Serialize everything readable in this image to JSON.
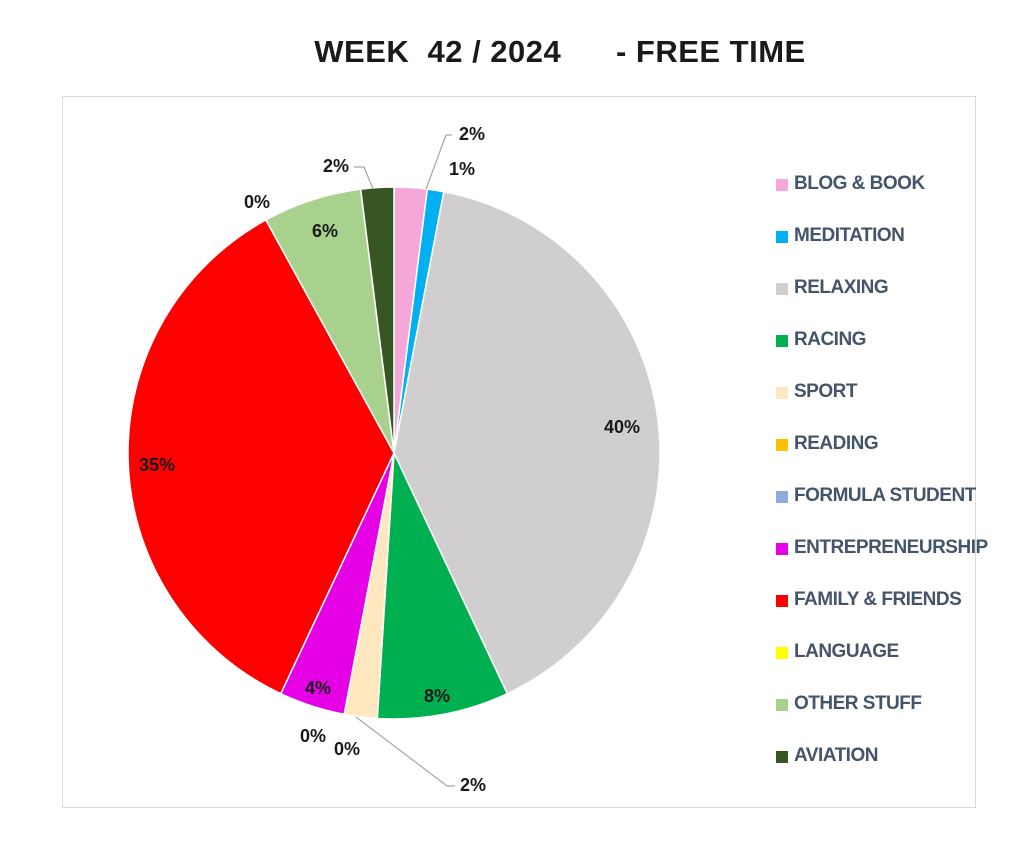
{
  "chart_data": {
    "type": "pie",
    "title": "WEEK  42 / 2024      - FREE TIME",
    "legend_position": "right",
    "slices": [
      {
        "label": "BLOG & BOOK",
        "value": 2,
        "display": "2%",
        "color": "#f4a7d8"
      },
      {
        "label": "MEDITATION",
        "value": 1,
        "display": "1%",
        "color": "#00b0f0"
      },
      {
        "label": "RELAXING",
        "value": 40,
        "display": "40%",
        "color": "#d0cece"
      },
      {
        "label": "RACING",
        "value": 8,
        "display": "8%",
        "color": "#00b050"
      },
      {
        "label": "SPORT",
        "value": 2,
        "display": "2%",
        "color": "#ffe8c0"
      },
      {
        "label": "READING",
        "value": 0,
        "display": "0%",
        "color": "#ffc000"
      },
      {
        "label": "FORMULA STUDENT",
        "value": 0,
        "display": "0%",
        "color": "#8faadc"
      },
      {
        "label": "ENTREPRENEURSHIP",
        "value": 4,
        "display": "4%",
        "color": "#e600e6"
      },
      {
        "label": "FAMILY & FRIENDS",
        "value": 35,
        "display": "35%",
        "color": "#ff0000"
      },
      {
        "label": "LANGUAGE",
        "value": 0,
        "display": "0%",
        "color": "#ffff00"
      },
      {
        "label": "OTHER STUFF",
        "value": 6,
        "display": "6%",
        "color": "#a9d18e"
      },
      {
        "label": "AVIATION",
        "value": 2,
        "display": "2%",
        "color": "#375623"
      }
    ]
  }
}
